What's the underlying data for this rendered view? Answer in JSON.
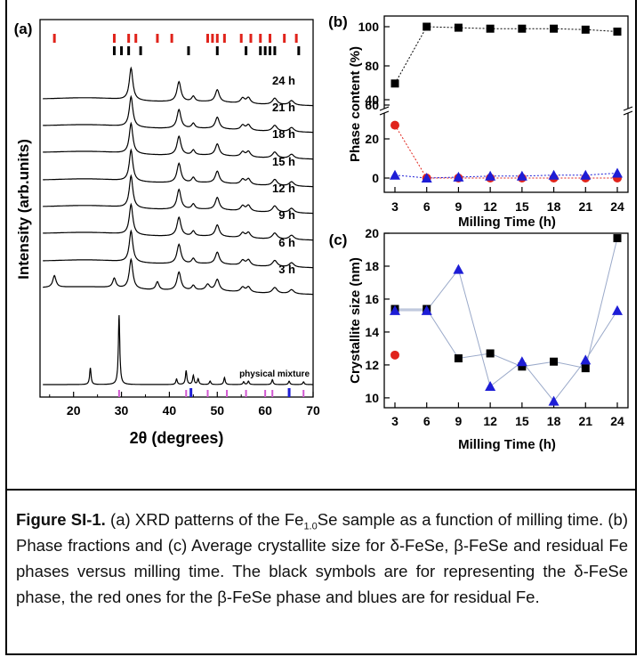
{
  "panel_labels": {
    "a": "(a)",
    "b": "(b)",
    "c": "(c)"
  },
  "chart_data": [
    {
      "type": "line",
      "panel": "(a)",
      "xlabel": "2θ (degrees)",
      "ylabel": "Intensity (arb.units)",
      "xlim": [
        13,
        70
      ],
      "xticks": [
        20,
        30,
        40,
        50,
        60,
        70
      ],
      "series_labels": [
        "24 h",
        "21 h",
        "18 h",
        "15 h",
        "12 h",
        "9 h",
        "6 h",
        "3 h",
        "physical mixture"
      ],
      "reference_ticks_red": [
        16,
        28.5,
        31.5,
        33,
        37.5,
        40.5,
        48,
        49,
        50,
        51.5,
        55,
        57,
        59,
        61,
        64,
        66.5
      ],
      "reference_ticks_black": [
        28.5,
        30,
        31.5,
        34,
        44,
        50,
        56,
        59,
        60,
        61,
        62,
        67
      ],
      "peaks_main": [
        32,
        42,
        45,
        50,
        55,
        56.5,
        62,
        65.5
      ],
      "mixture_peaks": [
        23.5,
        29.5,
        41.5,
        43.5,
        45,
        46,
        48.5,
        51.5,
        55.5,
        56.5,
        61.5,
        65,
        68
      ],
      "mixture_ticks_pink": [
        29.5,
        43.5,
        48,
        52,
        56,
        60,
        61.5,
        65,
        68
      ],
      "mixture_ticks_blue": [
        44.5,
        65
      ]
    },
    {
      "type": "line",
      "panel": "(b)",
      "xlabel": "Milling Time (h)",
      "ylabel": "Phase content (%)",
      "x": [
        3,
        6,
        9,
        12,
        15,
        18,
        21,
        24
      ],
      "yticks": [
        0,
        20,
        40,
        60,
        80,
        100
      ],
      "axis_break": [
        30,
        60
      ],
      "series": [
        {
          "name": "δ-FeSe",
          "color": "#000000",
          "marker": "square",
          "values": [
            71,
            100,
            99.5,
            99,
            99,
            99,
            98.5,
            97.5
          ]
        },
        {
          "name": "β-FeSe",
          "color": "#e0231b",
          "marker": "circle",
          "values": [
            27,
            0,
            0,
            0,
            0,
            0,
            0,
            0
          ]
        },
        {
          "name": "Fe",
          "color": "#1d1dd6",
          "marker": "triangle",
          "values": [
            1.5,
            0,
            0.5,
            1,
            1,
            1.5,
            1.5,
            2.5
          ]
        }
      ]
    },
    {
      "type": "line",
      "panel": "(c)",
      "xlabel": "Milling Time (h)",
      "ylabel": "Crystallite size (nm)",
      "x": [
        3,
        6,
        9,
        12,
        15,
        18,
        21,
        24
      ],
      "ylim": [
        9.4,
        20
      ],
      "yticks": [
        10,
        12,
        14,
        16,
        18,
        20
      ],
      "series": [
        {
          "name": "δ-FeSe",
          "color": "#000000",
          "marker": "square",
          "values": [
            15.4,
            15.4,
            12.4,
            12.7,
            11.9,
            12.2,
            11.8,
            19.7
          ]
        },
        {
          "name": "β-FeSe",
          "color": "#e0231b",
          "marker": "circle",
          "values": [
            12.6,
            null,
            null,
            null,
            null,
            null,
            null,
            null
          ]
        },
        {
          "name": "Fe",
          "color": "#1d1dd6",
          "marker": "triangle",
          "values": [
            15.3,
            15.3,
            17.8,
            10.7,
            12.2,
            9.8,
            12.3,
            15.3
          ]
        }
      ]
    }
  ],
  "caption": {
    "label": "Figure SI-1.",
    "part1": " (a) XRD patterns of the Fe",
    "subscript": "1.0",
    "part2": "Se sample as a function of milling time. (b) Phase fractions and (c) Average crystallite size for δ-FeSe, β-FeSe and residual Fe phases versus milling time. The black symbols are for representing the δ-FeSe phase, the red ones for the β-FeSe phase and blues are for residual Fe."
  }
}
